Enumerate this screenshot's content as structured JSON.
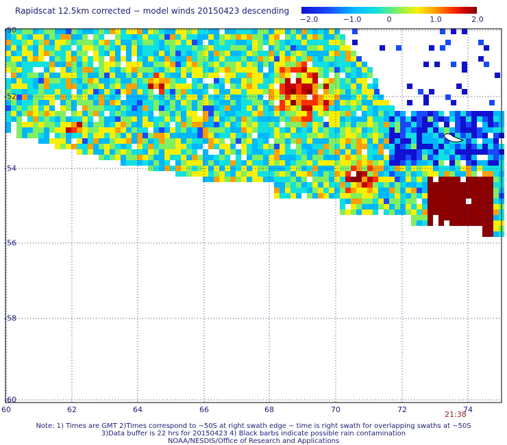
{
  "title": "Rapidscat 12.5km corrected − model winds 20150423 descending",
  "colorbar": {
    "labels": [
      "−2.0",
      "−1.0",
      "0",
      "1.0",
      "2.0"
    ],
    "min": -2.0,
    "max": 2.0,
    "colors": [
      "#1010d0",
      "#1848ff",
      "#00b8ff",
      "#10e0e0",
      "#80f060",
      "#f8f000",
      "#ffa000",
      "#ff3000",
      "#c00000",
      "#8a0000"
    ]
  },
  "axes": {
    "x_ticks": [
      "60",
      "62",
      "64",
      "66",
      "68",
      "70",
      "72",
      "74"
    ],
    "y_ticks": [
      "-50",
      "-52",
      "-54",
      "-56",
      "-58",
      "-60"
    ],
    "lon_range": [
      60,
      75
    ],
    "lat_range": [
      -60,
      -50
    ],
    "grid": "dotted"
  },
  "timestamp": "21:38",
  "notes": [
    "Note: 1) Times are GMT 2)Times correspond to −50S at right swath edge − time is right swath for overlapping swaths at −50S",
    "3)Data buffer is 22 hrs for 20150423 4) Black barbs indicate possible rain contamination",
    "NOAA/NESDIS/Office of Research and Applications"
  ],
  "map": {
    "land": "Heard Island",
    "swath_region": "wind-difference swath between lon 60-75, lat -50 to -55.8"
  }
}
